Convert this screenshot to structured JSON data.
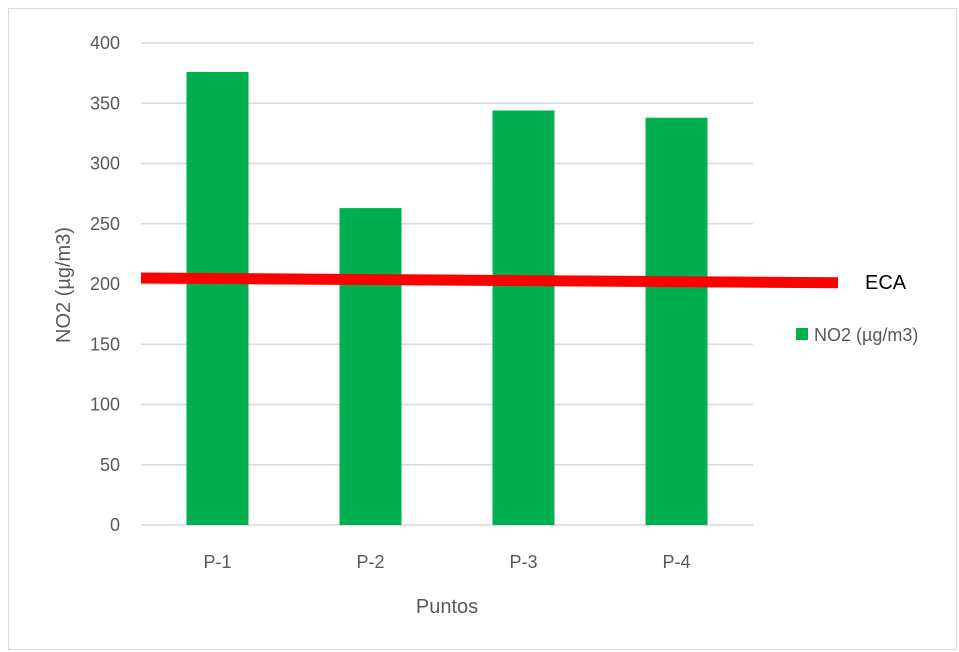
{
  "chart_data": {
    "type": "bar",
    "title": "",
    "xlabel": "Puntos",
    "ylabel": "NO2 (µg/m3)",
    "categories": [
      "P-1",
      "P-2",
      "P-3",
      "P-4"
    ],
    "series": [
      {
        "name": "NO2 (µg/m3)",
        "values": [
          376,
          263,
          344,
          338
        ],
        "color": "#00b050"
      }
    ],
    "ylim": [
      0,
      400
    ],
    "yticks": [
      0,
      50,
      100,
      150,
      200,
      250,
      300,
      350,
      400
    ],
    "grid": true,
    "legend": "right",
    "reference_line": {
      "label": "ECA",
      "start_value": 205,
      "end_value": 201,
      "color": "#ff0000"
    }
  }
}
